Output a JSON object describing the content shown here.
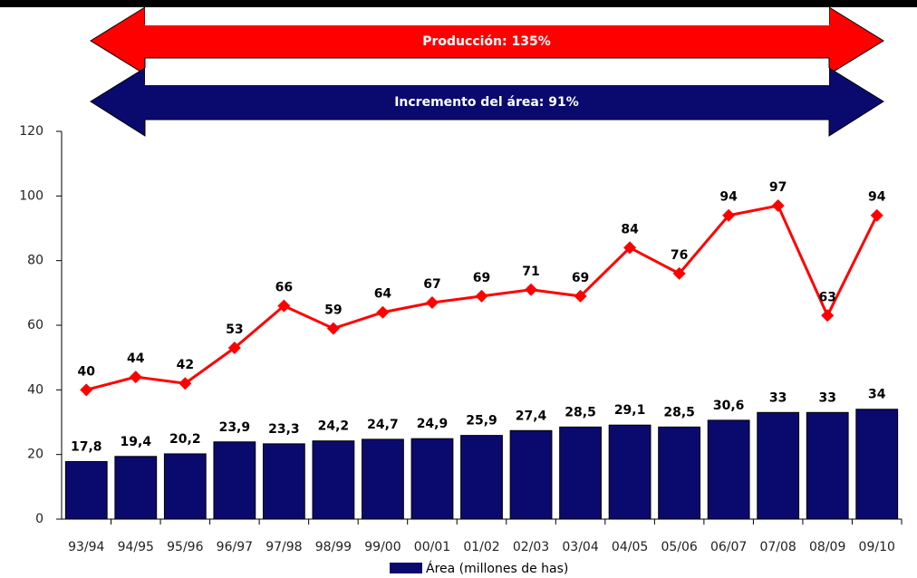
{
  "chart_data": {
    "type": "bar",
    "annotations": [
      {
        "text": "Producción: 135%",
        "color": "#ff0000"
      },
      {
        "text": "Incremento del área: 91%",
        "color": "#0a0a6e"
      }
    ],
    "categories": [
      "93/94",
      "94/95",
      "95/96",
      "96/97",
      "97/98",
      "98/99",
      "99/00",
      "00/01",
      "01/02",
      "02/03",
      "03/04",
      "04/05",
      "05/06",
      "06/07",
      "07/08",
      "08/09",
      "09/10"
    ],
    "series": [
      {
        "name": "Área (millones de has)",
        "type": "bar",
        "color": "#0a0a6e",
        "values": [
          17.8,
          19.4,
          20.2,
          23.9,
          23.3,
          24.2,
          24.7,
          24.9,
          25.9,
          27.4,
          28.5,
          29.1,
          28.5,
          30.6,
          33,
          33,
          34
        ],
        "value_labels": [
          "17,8",
          "19,4",
          "20,2",
          "23,9",
          "23,3",
          "24,2",
          "24,7",
          "24,9",
          "25,9",
          "27,4",
          "28,5",
          "29,1",
          "28,5",
          "30,6",
          "33",
          "33",
          "34"
        ]
      },
      {
        "type": "line",
        "color": "#ff0000",
        "values": [
          40,
          44,
          42,
          53,
          66,
          59,
          64,
          67,
          69,
          71,
          69,
          84,
          76,
          94,
          97,
          63,
          94
        ]
      }
    ],
    "ylim": [
      0,
      120
    ],
    "yticks": [
      0,
      20,
      40,
      60,
      80,
      100,
      120
    ],
    "grid": false
  }
}
